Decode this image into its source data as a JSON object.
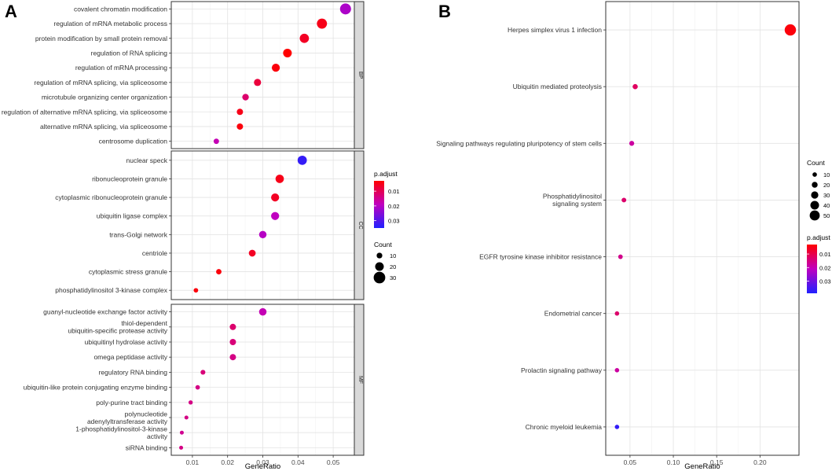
{
  "panel_labels": [
    "A",
    "B"
  ],
  "chart_data": [
    {
      "type": "scatter",
      "panel": "A",
      "xlabel": "GeneRatio",
      "ylabel": "",
      "xlim": [
        0.004,
        0.056
      ],
      "xticks": [
        0.01,
        0.02,
        0.03,
        0.04,
        0.05
      ],
      "xtick_labels": [
        "0.01",
        "0.02",
        "0.03",
        "0.04",
        "0.05"
      ],
      "grid": true,
      "color_scale": [
        "#ff0000",
        "#0000ff"
      ],
      "facets": [
        {
          "label": "BP",
          "points": [
            {
              "term": "covalent chromatin modification",
              "ratio": 0.0535,
              "count": 28,
              "padj": 0.021
            },
            {
              "term": "regulation of mRNA metabolic process",
              "ratio": 0.0468,
              "count": 25,
              "padj": 0.005
            },
            {
              "term": "protein modification by small protein removal",
              "ratio": 0.0418,
              "count": 22,
              "padj": 0.006
            },
            {
              "term": "regulation of RNA splicing",
              "ratio": 0.037,
              "count": 20,
              "padj": 0.003
            },
            {
              "term": "regulation of mRNA processing",
              "ratio": 0.0337,
              "count": 18,
              "padj": 0.004
            },
            {
              "term": "regulation of mRNA splicing, via spliceosome",
              "ratio": 0.0285,
              "count": 15,
              "padj": 0.008
            },
            {
              "term": "microtubule organizing center organization",
              "ratio": 0.0251,
              "count": 13,
              "padj": 0.012
            },
            {
              "term": "regulation of alternative mRNA splicing, via spliceosome",
              "ratio": 0.0235,
              "count": 12,
              "padj": 0.005
            },
            {
              "term": "alternative mRNA splicing, via spliceosome",
              "ratio": 0.0235,
              "count": 12,
              "padj": 0.004
            },
            {
              "term": "centrosome duplication",
              "ratio": 0.0168,
              "count": 9,
              "padj": 0.018
            }
          ]
        },
        {
          "label": "CC",
          "points": [
            {
              "term": "nuclear speck",
              "ratio": 0.0412,
              "count": 22,
              "padj": 0.033
            },
            {
              "term": "ribonucleoprotein granule",
              "ratio": 0.0348,
              "count": 19,
              "padj": 0.005
            },
            {
              "term": "cytoplasmic ribonucleoprotein granule",
              "ratio": 0.0335,
              "count": 18,
              "padj": 0.006
            },
            {
              "term": "ubiquitin ligase complex",
              "ratio": 0.0335,
              "count": 18,
              "padj": 0.019
            },
            {
              "term": "trans-Golgi network",
              "ratio": 0.03,
              "count": 16,
              "padj": 0.02
            },
            {
              "term": "centriole",
              "ratio": 0.027,
              "count": 14,
              "padj": 0.006
            },
            {
              "term": "cytoplasmic stress granule",
              "ratio": 0.0175,
              "count": 9,
              "padj": 0.004
            },
            {
              "term": "phosphatidylinositol 3-kinase complex",
              "ratio": 0.011,
              "count": 6,
              "padj": 0.004
            }
          ]
        },
        {
          "label": "MF",
          "points": [
            {
              "term": "guanyl-nucleotide exchange factor activity",
              "ratio": 0.03,
              "count": 16,
              "padj": 0.018
            },
            {
              "term": "thiol-dependent\nubiquitin-specific protease activity",
              "ratio": 0.0215,
              "count": 12,
              "padj": 0.012
            },
            {
              "term": "ubiquitinyl hydrolase activity",
              "ratio": 0.0215,
              "count": 12,
              "padj": 0.013
            },
            {
              "term": "omega peptidase activity",
              "ratio": 0.0215,
              "count": 12,
              "padj": 0.014
            },
            {
              "term": "regulatory RNA binding",
              "ratio": 0.013,
              "count": 7,
              "padj": 0.013
            },
            {
              "term": "ubiquitin-like protein conjugating enzyme binding",
              "ratio": 0.0115,
              "count": 6,
              "padj": 0.014
            },
            {
              "term": "poly-purine tract binding",
              "ratio": 0.0095,
              "count": 5,
              "padj": 0.014
            },
            {
              "term": "polynucleotide\nadenylyltransferase activity",
              "ratio": 0.0083,
              "count": 4,
              "padj": 0.014
            },
            {
              "term": "1-phosphatidylinositol-3-kinase\nactivity",
              "ratio": 0.007,
              "count": 4,
              "padj": 0.015
            },
            {
              "term": "siRNA binding",
              "ratio": 0.0068,
              "count": 4,
              "padj": 0.014
            }
          ]
        }
      ],
      "legend_padj": {
        "title": "p.adjust",
        "range": [
          0.035,
          0.003
        ],
        "ticks": [
          0.01,
          0.02,
          0.03
        ],
        "tick_labels": [
          "0.01",
          "0.02",
          "0.03"
        ]
      },
      "legend_count": {
        "title": "Count",
        "values": [
          10,
          20,
          30
        ],
        "labels": [
          "10",
          "20",
          "30"
        ]
      },
      "legend_placement": "right"
    },
    {
      "type": "scatter",
      "panel": "B",
      "xlabel": "GeneRatio",
      "ylabel": "",
      "xlim": [
        0.022,
        0.245
      ],
      "xticks": [
        0.05,
        0.1,
        0.15,
        0.2
      ],
      "xtick_labels": [
        "0.05",
        "0.10",
        "0.15",
        "0.20"
      ],
      "grid": true,
      "color_scale": [
        "#ff0000",
        "#0000ff"
      ],
      "points": [
        {
          "term": "Herpes simplex virus 1 infection",
          "ratio": 0.235,
          "count": 55,
          "padj": 0.004
        },
        {
          "term": "Ubiquitin mediated proteolysis",
          "ratio": 0.056,
          "count": 13,
          "padj": 0.012
        },
        {
          "term": "Signaling pathways regulating pluripotency of stem cells",
          "ratio": 0.052,
          "count": 12,
          "padj": 0.018
        },
        {
          "term": "Phosphatidylinositol\nsignaling system",
          "ratio": 0.043,
          "count": 10,
          "padj": 0.013
        },
        {
          "term": "EGFR tyrosine kinase inhibitor resistance",
          "ratio": 0.039,
          "count": 9,
          "padj": 0.016
        },
        {
          "term": "Endometrial cancer",
          "ratio": 0.035,
          "count": 8,
          "padj": 0.013
        },
        {
          "term": "Prolactin signaling pathway",
          "ratio": 0.035,
          "count": 8,
          "padj": 0.018
        },
        {
          "term": "Chronic myeloid leukemia",
          "ratio": 0.035,
          "count": 8,
          "padj": 0.037
        }
      ],
      "legend_count": {
        "title": "Count",
        "values": [
          10,
          20,
          30,
          40,
          50
        ],
        "labels": [
          "10",
          "20",
          "30",
          "40",
          "50"
        ]
      },
      "legend_padj": {
        "title": "p.adjust",
        "range": [
          0.039,
          0.003
        ],
        "ticks": [
          0.01,
          0.02,
          0.03
        ],
        "tick_labels": [
          "0.01",
          "0.02",
          "0.03"
        ]
      },
      "legend_placement": "right"
    }
  ]
}
